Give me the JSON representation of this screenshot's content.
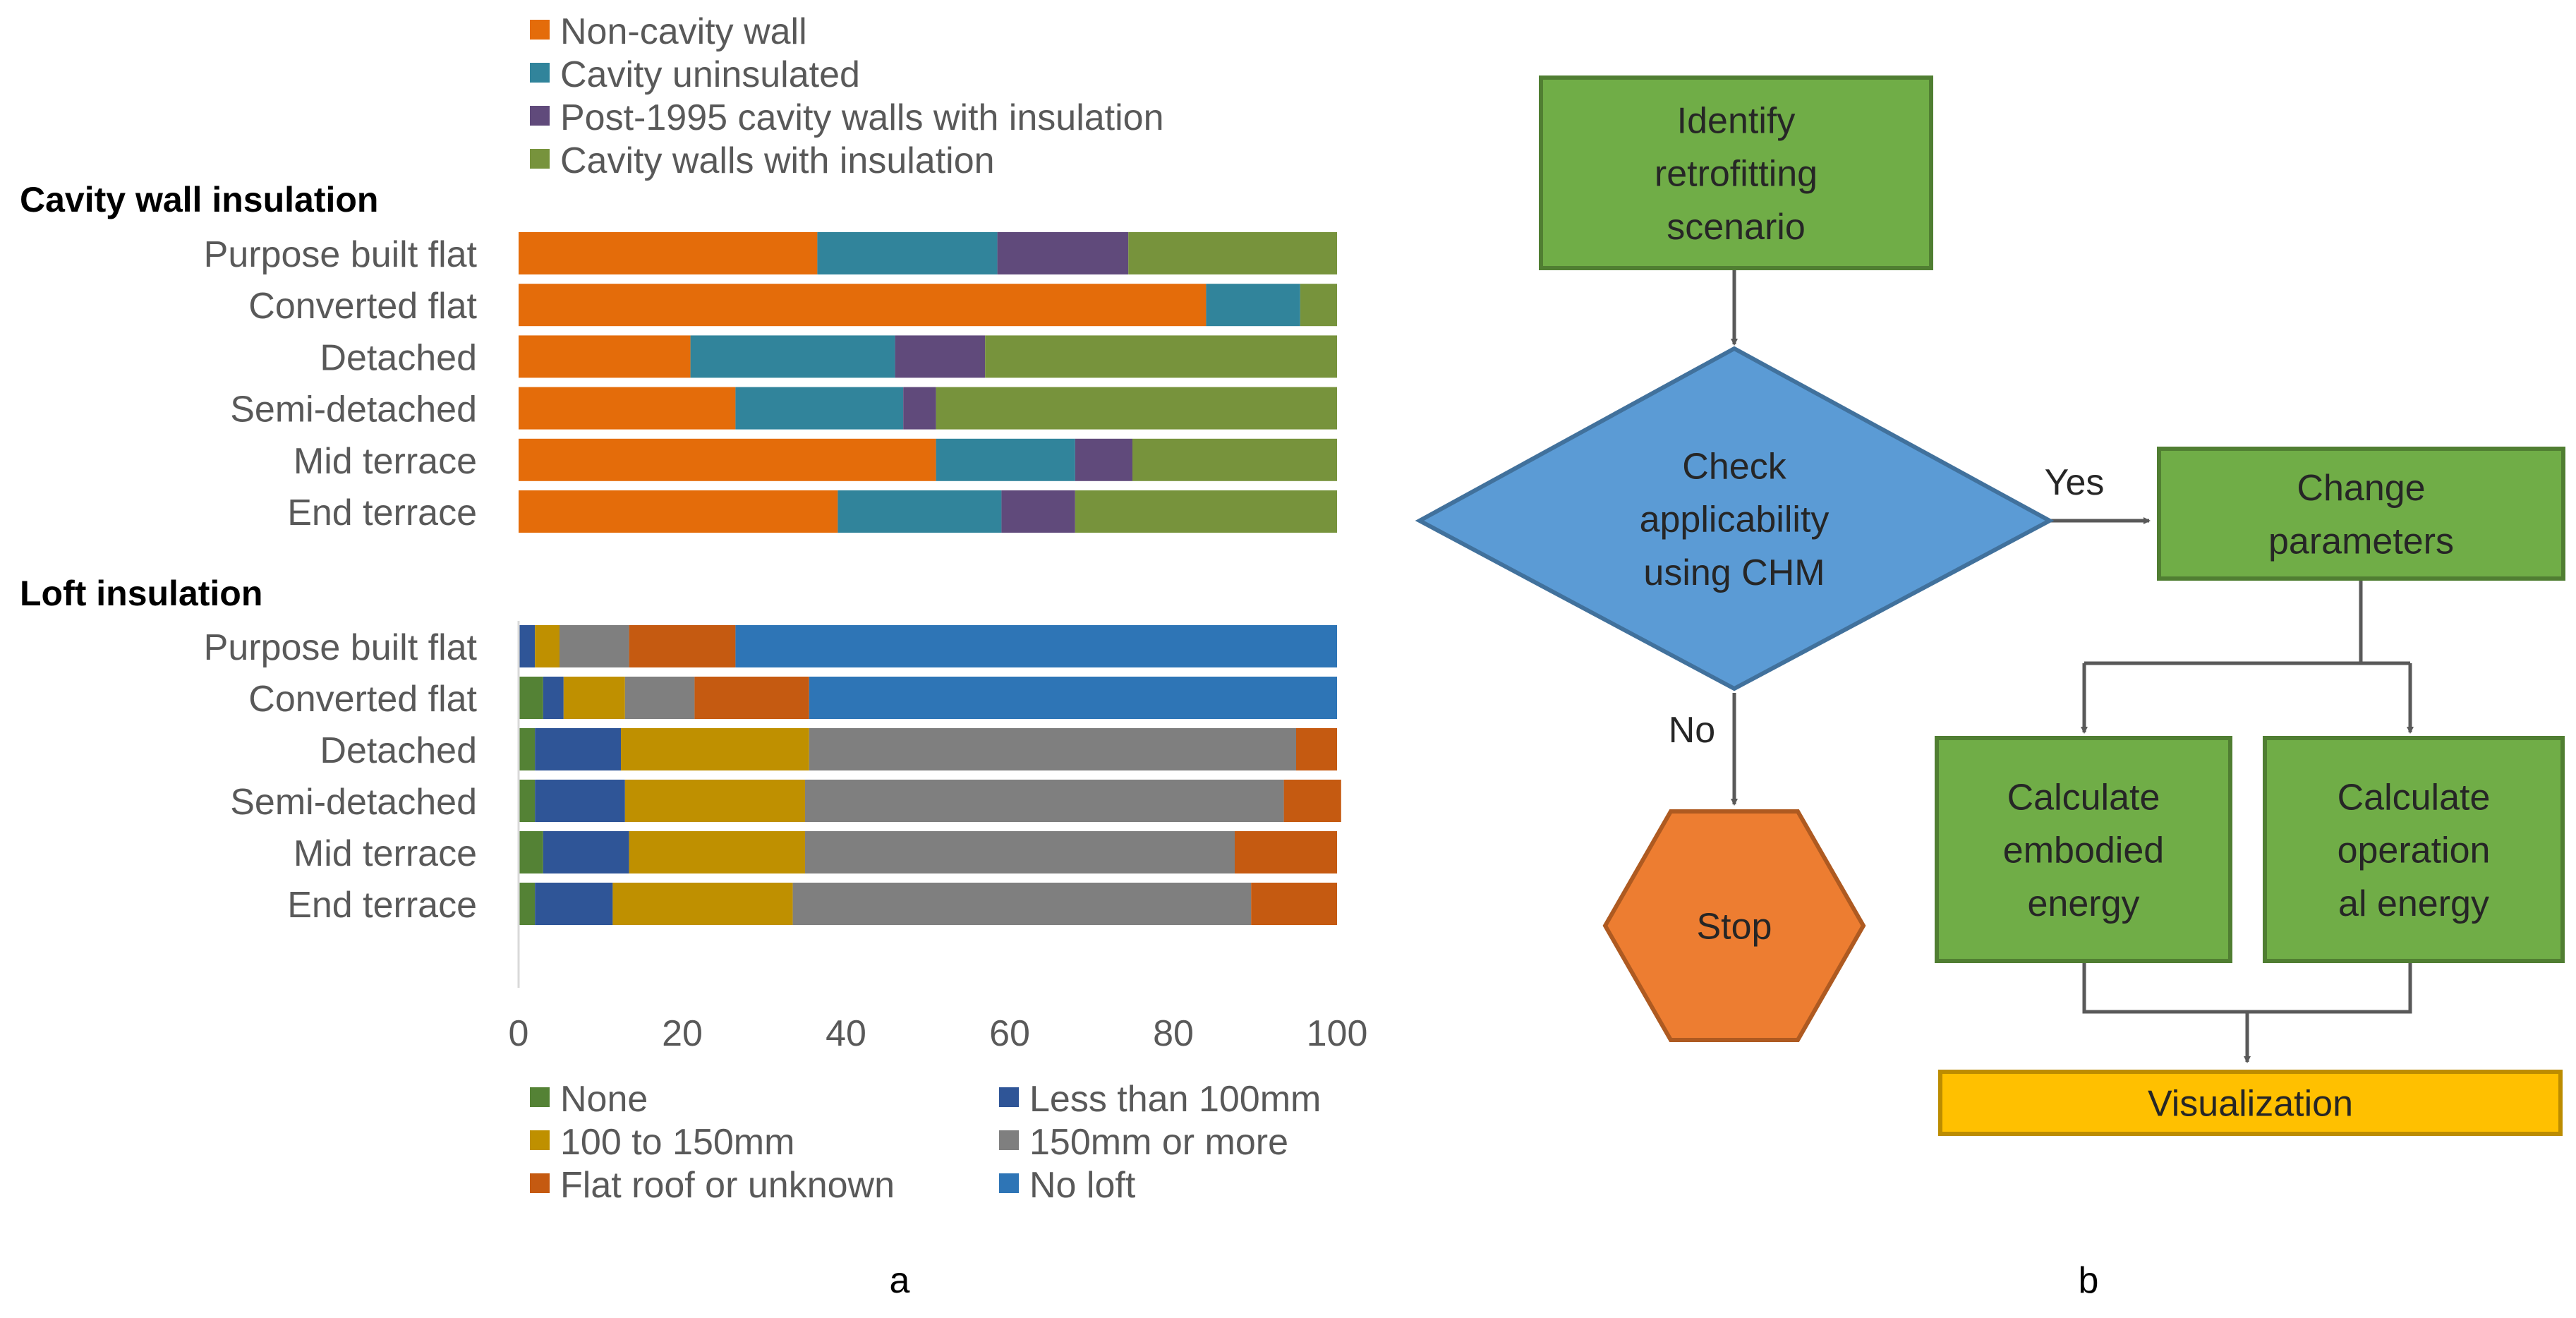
{
  "panel_a_label": "a",
  "panel_b_label": "b",
  "chart_data": [
    {
      "type": "bar",
      "orientation": "horizontal",
      "stacked": true,
      "title": "Cavity wall insulation",
      "categories": [
        "Purpose built flat",
        "Converted flat",
        "Detached",
        "Semi-detached",
        "Mid terrace",
        "End terrace"
      ],
      "series": [
        {
          "name": "Non-cavity wall",
          "color": "#E46C0A",
          "values": [
            36.5,
            84,
            21,
            26.5,
            51,
            39
          ]
        },
        {
          "name": "Cavity uninsulated",
          "color": "#31849B",
          "values": [
            22,
            11.5,
            25,
            20.5,
            17,
            20
          ]
        },
        {
          "name": "Post-1995 cavity walls with insulation",
          "color": "#604A7B",
          "values": [
            16,
            0,
            11,
            4,
            7,
            9
          ]
        },
        {
          "name": "Cavity walls with insulation",
          "color": "#77933C",
          "values": [
            25.5,
            4.5,
            43,
            49,
            25,
            32
          ]
        }
      ],
      "xlim": [
        0,
        100
      ]
    },
    {
      "type": "bar",
      "orientation": "horizontal",
      "stacked": true,
      "title": "Loft insulation",
      "categories": [
        "Purpose built flat",
        "Converted flat",
        "Detached",
        "Semi-detached",
        "Mid terrace",
        "End terrace"
      ],
      "series": [
        {
          "name": "None",
          "color": "#548235",
          "values": [
            0,
            3,
            2,
            2,
            3,
            2
          ]
        },
        {
          "name": "Less than 100mm",
          "color": "#2F5597",
          "values": [
            2,
            2.5,
            10.5,
            11,
            10.5,
            9.5
          ]
        },
        {
          "name": "100 to 150mm",
          "color": "#BF9000",
          "values": [
            3,
            7.5,
            23,
            22,
            21.5,
            22
          ]
        },
        {
          "name": "150mm or more",
          "color": "#7F7F7F",
          "values": [
            8.5,
            8.5,
            59.5,
            58.5,
            52.5,
            56
          ]
        },
        {
          "name": "Flat roof or unknown",
          "color": "#C55A11",
          "values": [
            13,
            14,
            5,
            7,
            12.5,
            10.5
          ]
        },
        {
          "name": "No loft",
          "color": "#2E75B6",
          "values": [
            73.5,
            64.5,
            0,
            0,
            0,
            0
          ]
        }
      ],
      "xlim": [
        0,
        100
      ],
      "xticks": [
        0,
        20,
        40,
        60,
        80,
        100
      ]
    }
  ],
  "flowchart": {
    "identify": [
      "Identify",
      "retrofitting",
      "scenario"
    ],
    "check": [
      "Check",
      "applicability",
      "using CHM"
    ],
    "yes": "Yes",
    "no": "No",
    "change": [
      "Change",
      "parameters"
    ],
    "stop": "Stop",
    "embodied": [
      "Calculate",
      "embodied",
      "energy"
    ],
    "operational": [
      "Calculate",
      "operation",
      "al energy"
    ],
    "visualization": "Visualization"
  },
  "colors": {
    "green_box": "#70AD47",
    "green_border": "#507E32",
    "diamond": "#5B9BD5",
    "diamond_border": "#41719C",
    "stop": "#ED7D31",
    "stop_border": "#AE5A21",
    "visualization": "#FFC000",
    "visualization_border": "#BC8C00",
    "arrow": "#595959"
  }
}
